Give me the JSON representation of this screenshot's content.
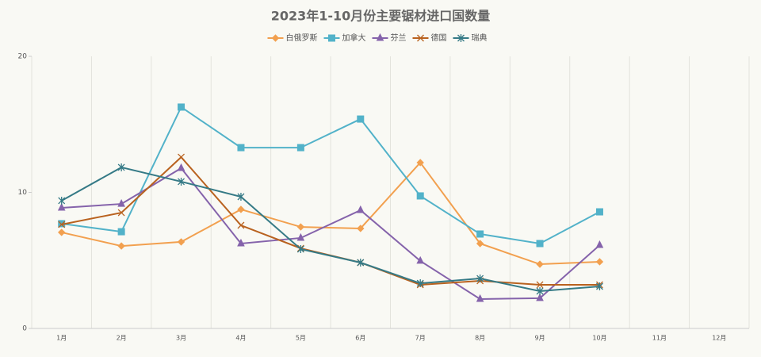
{
  "chart_data": {
    "type": "line",
    "title": "2023年1-10月份主要锯材进口国数量",
    "categories": [
      "1月",
      "2月",
      "3月",
      "4月",
      "5月",
      "6月",
      "7月",
      "8月",
      "9月",
      "10月",
      "11月",
      "12月"
    ],
    "series": [
      {
        "name": "白俄罗斯",
        "color": "#f2a04f",
        "marker": "diamond",
        "values": [
          7.06,
          6.06,
          6.36,
          8.75,
          7.46,
          7.35,
          12.19,
          6.24,
          4.72,
          4.9,
          null,
          null
        ]
      },
      {
        "name": "加拿大",
        "color": "#52b2c9",
        "marker": "square",
        "values": [
          7.7,
          7.11,
          16.27,
          13.29,
          13.29,
          15.39,
          9.74,
          6.94,
          6.24,
          8.57,
          null,
          null
        ]
      },
      {
        "name": "芬兰",
        "color": "#8563ab",
        "marker": "triangle",
        "values": [
          8.86,
          9.15,
          11.78,
          6.24,
          6.65,
          8.69,
          4.96,
          2.16,
          2.22,
          6.12,
          null,
          null
        ]
      },
      {
        "name": "德国",
        "color": "#b9621f",
        "marker": "cross",
        "values": [
          7.64,
          8.51,
          12.59,
          7.58,
          5.89,
          4.84,
          3.21,
          3.5,
          3.21,
          3.21,
          null,
          null
        ]
      },
      {
        "name": "瑞典",
        "color": "#357a86",
        "marker": "star",
        "values": [
          9.39,
          11.84,
          10.79,
          9.68,
          5.83,
          4.84,
          3.32,
          3.67,
          2.74,
          3.09,
          null,
          null
        ]
      }
    ],
    "ylim": [
      0,
      20
    ],
    "yticks": [
      0,
      10,
      20
    ],
    "legend": "top"
  }
}
